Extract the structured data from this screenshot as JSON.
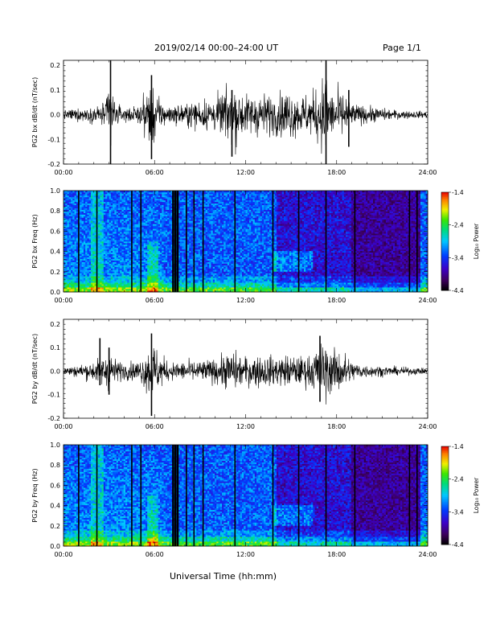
{
  "header": {
    "title": "2019/02/14  00:00–24:00 UT",
    "page": "Page 1/1"
  },
  "xlabel": "Universal Time (hh:mm)",
  "chart_data": [
    {
      "type": "line",
      "ylabel": "PG2 bx dB/dt (nT/sec)",
      "xlim": [
        0,
        24
      ],
      "ylim": [
        -0.2,
        0.22
      ],
      "xticks": [
        "00:00",
        "06:00",
        "12:00",
        "18:00",
        "24:00"
      ],
      "yticks": [
        "-0.2",
        "-0.1",
        "0.0",
        "0.1",
        "0.2"
      ],
      "ytick_values": [
        -0.2,
        -0.1,
        0.0,
        0.1,
        0.2
      ],
      "series": [
        {
          "envelope": [
            [
              0,
              0.02
            ],
            [
              1,
              0.03
            ],
            [
              2,
              0.035
            ],
            [
              2.8,
              0.06
            ],
            [
              3.1,
              0.22
            ],
            [
              3.4,
              0.05
            ],
            [
              4,
              0.03
            ],
            [
              5,
              0.04
            ],
            [
              5.5,
              0.12
            ],
            [
              5.8,
              0.17
            ],
            [
              6.2,
              0.08
            ],
            [
              7,
              0.04
            ],
            [
              8,
              0.05
            ],
            [
              9,
              0.07
            ],
            [
              10,
              0.08
            ],
            [
              10.8,
              0.12
            ],
            [
              11.2,
              0.15
            ],
            [
              11.6,
              0.12
            ],
            [
              12,
              0.09
            ],
            [
              13,
              0.1
            ],
            [
              14,
              0.09
            ],
            [
              14.8,
              0.12
            ],
            [
              15.5,
              0.09
            ],
            [
              16.3,
              0.1
            ],
            [
              16.9,
              0.14
            ],
            [
              17.3,
              0.22
            ],
            [
              17.6,
              0.1
            ],
            [
              18,
              0.12
            ],
            [
              18.6,
              0.1
            ],
            [
              19,
              0.05
            ],
            [
              20,
              0.04
            ],
            [
              21,
              0.03
            ],
            [
              22,
              0.02
            ],
            [
              24,
              0.015
            ]
          ],
          "spikes": [
            [
              3.1,
              0.22,
              -0.2
            ],
            [
              17.3,
              0.22,
              -0.2
            ],
            [
              5.8,
              0.16,
              -0.18
            ],
            [
              11.1,
              0.1,
              -0.17
            ],
            [
              18.8,
              0.1,
              -0.13
            ]
          ]
        }
      ]
    },
    {
      "type": "heatmap",
      "ylabel": "PG2 bx Freq (Hz)",
      "xlim": [
        0,
        24
      ],
      "ylim": [
        0,
        1.0
      ],
      "xticks": [
        "00:00",
        "06:00",
        "12:00",
        "18:00",
        "24:00"
      ],
      "yticks": [
        "0.0",
        "0.2",
        "0.4",
        "0.6",
        "0.8",
        "1.0"
      ],
      "ytick_values": [
        0,
        0.2,
        0.4,
        0.6,
        0.8,
        1.0
      ],
      "colorbar": {
        "label": "Log₁₀ Power",
        "range": [
          -4.4,
          -1.4
        ],
        "ticks": [
          "-1.4",
          "-2.4",
          "-3.4",
          "-4.4"
        ],
        "tick_values": [
          -1.4,
          -2.4,
          -3.4,
          -4.4
        ]
      },
      "gaps": [
        1.0,
        2.2,
        4.5,
        5.1,
        7.2,
        7.35,
        7.5,
        8.1,
        8.6,
        9.2,
        11.3,
        13.8,
        15.5,
        17.3,
        19.2,
        22.8,
        23.3
      ]
    },
    {
      "type": "line",
      "ylabel": "PG2 by dB/dt (nT/sec)",
      "xlim": [
        0,
        24
      ],
      "ylim": [
        -0.2,
        0.22
      ],
      "xticks": [
        "00:00",
        "06:00",
        "12:00",
        "18:00",
        "24:00"
      ],
      "yticks": [
        "-0.2",
        "-0.1",
        "0.0",
        "0.1",
        "0.2"
      ],
      "ytick_values": [
        -0.2,
        -0.1,
        0.0,
        0.1,
        0.2
      ],
      "series": [
        {
          "envelope": [
            [
              0,
              0.02
            ],
            [
              1,
              0.03
            ],
            [
              2,
              0.05
            ],
            [
              2.8,
              0.08
            ],
            [
              3.1,
              0.1
            ],
            [
              3.4,
              0.06
            ],
            [
              4,
              0.04
            ],
            [
              5,
              0.05
            ],
            [
              5.5,
              0.1
            ],
            [
              5.8,
              0.16
            ],
            [
              6.2,
              0.1
            ],
            [
              7,
              0.04
            ],
            [
              8,
              0.05
            ],
            [
              9,
              0.05
            ],
            [
              10,
              0.06
            ],
            [
              10.8,
              0.09
            ],
            [
              11.2,
              0.1
            ],
            [
              11.6,
              0.08
            ],
            [
              12,
              0.07
            ],
            [
              13,
              0.08
            ],
            [
              14,
              0.07
            ],
            [
              14.8,
              0.08
            ],
            [
              15.5,
              0.07
            ],
            [
              16.3,
              0.08
            ],
            [
              16.9,
              0.13
            ],
            [
              17.3,
              0.15
            ],
            [
              17.6,
              0.1
            ],
            [
              18,
              0.11
            ],
            [
              18.6,
              0.09
            ],
            [
              19,
              0.05
            ],
            [
              20,
              0.03
            ],
            [
              21,
              0.025
            ],
            [
              22,
              0.02
            ],
            [
              24,
              0.015
            ]
          ],
          "spikes": [
            [
              5.8,
              0.16,
              -0.19
            ],
            [
              2.4,
              0.14,
              -0.06
            ],
            [
              3.0,
              0.1,
              -0.1
            ],
            [
              16.9,
              0.15,
              -0.13
            ]
          ]
        }
      ]
    },
    {
      "type": "heatmap",
      "ylabel": "PG2 by Freq (Hz)",
      "xlim": [
        0,
        24
      ],
      "ylim": [
        0,
        1.0
      ],
      "xticks": [
        "00:00",
        "06:00",
        "12:00",
        "18:00",
        "24:00"
      ],
      "yticks": [
        "0.0",
        "0.2",
        "0.4",
        "0.6",
        "0.8",
        "1.0"
      ],
      "ytick_values": [
        0,
        0.2,
        0.4,
        0.6,
        0.8,
        1.0
      ],
      "colorbar": {
        "label": "Log₁₀ Power",
        "range": [
          -4.4,
          -1.4
        ],
        "ticks": [
          "-1.4",
          "-2.4",
          "-3.4",
          "-4.4"
        ],
        "tick_values": [
          -1.4,
          -2.4,
          -3.4,
          -4.4
        ]
      },
      "gaps": [
        1.0,
        2.2,
        4.5,
        5.1,
        7.2,
        7.35,
        7.5,
        8.1,
        8.6,
        9.2,
        11.3,
        13.8,
        15.5,
        17.3,
        19.2,
        22.8,
        23.3
      ]
    }
  ]
}
